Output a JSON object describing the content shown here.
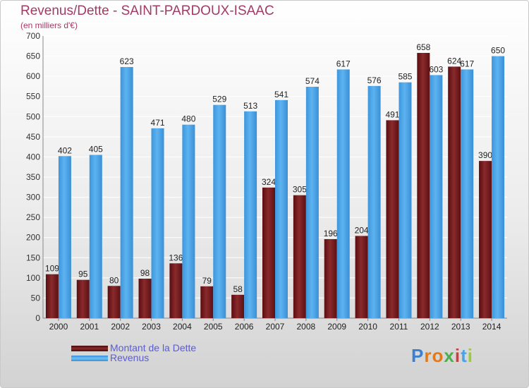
{
  "chart_data": {
    "type": "bar",
    "title": "Revenus/Dette - SAINT-PARDOUX-ISAAC",
    "subtitle": "(en milliers d'€)",
    "categories": [
      "2000",
      "2001",
      "2002",
      "2003",
      "2004",
      "2005",
      "2006",
      "2007",
      "2008",
      "2009",
      "2010",
      "2011",
      "2012",
      "2013",
      "2014"
    ],
    "series": [
      {
        "name": "Montant de la Dette",
        "color": "#7a1a1c",
        "values": [
          109,
          95,
          80,
          98,
          136,
          79,
          58,
          324,
          305,
          196,
          204,
          491,
          658,
          624,
          390
        ]
      },
      {
        "name": "Revenus",
        "color": "#4aa3e6",
        "values": [
          402,
          405,
          623,
          471,
          480,
          529,
          513,
          541,
          574,
          617,
          576,
          585,
          603,
          617,
          650
        ]
      }
    ],
    "ylim": [
      0,
      700
    ],
    "yticks": [
      0,
      50,
      100,
      150,
      200,
      250,
      300,
      350,
      400,
      450,
      500,
      550,
      600,
      650,
      700
    ],
    "grid": true,
    "legend_position": "bottom-left"
  },
  "logo": "Proxiti"
}
